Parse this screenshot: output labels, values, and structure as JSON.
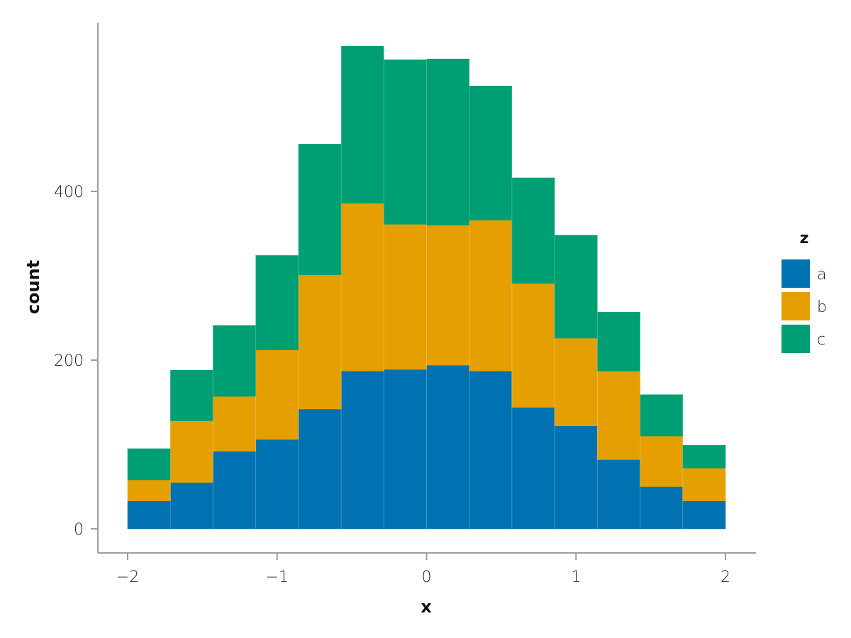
{
  "chart_data": {
    "type": "bar",
    "stacked": true,
    "xlabel": "x",
    "ylabel": "count",
    "xlim": [
      -2,
      2
    ],
    "ylim": [
      0,
      575
    ],
    "x_ticks": [
      "−2",
      "−1",
      "0",
      "1",
      "2"
    ],
    "x_tick_values": [
      -2,
      -1,
      0,
      1,
      2
    ],
    "y_ticks": [
      "0",
      "200",
      "400"
    ],
    "y_tick_values": [
      0,
      200,
      400
    ],
    "bin_edges": [
      -2.0,
      -1.714,
      -1.429,
      -1.143,
      -0.857,
      -0.571,
      -0.286,
      0.0,
      0.286,
      0.571,
      0.857,
      1.143,
      1.429,
      1.714,
      2.0
    ],
    "series": [
      {
        "name": "a",
        "color": "#0072B2",
        "values": [
          33,
          55,
          92,
          106,
          142,
          187,
          189,
          194,
          187,
          144,
          122,
          82,
          50,
          33
        ]
      },
      {
        "name": "b",
        "color": "#E69F00",
        "values": [
          25,
          73,
          65,
          106,
          159,
          199,
          172,
          166,
          179,
          147,
          104,
          105,
          60,
          39
        ]
      },
      {
        "name": "c",
        "color": "#009E73",
        "values": [
          37,
          60,
          84,
          112,
          155,
          186,
          195,
          197,
          159,
          125,
          122,
          70,
          49,
          27
        ]
      }
    ],
    "grid": false,
    "legend": {
      "title": "z",
      "position": "right"
    }
  }
}
